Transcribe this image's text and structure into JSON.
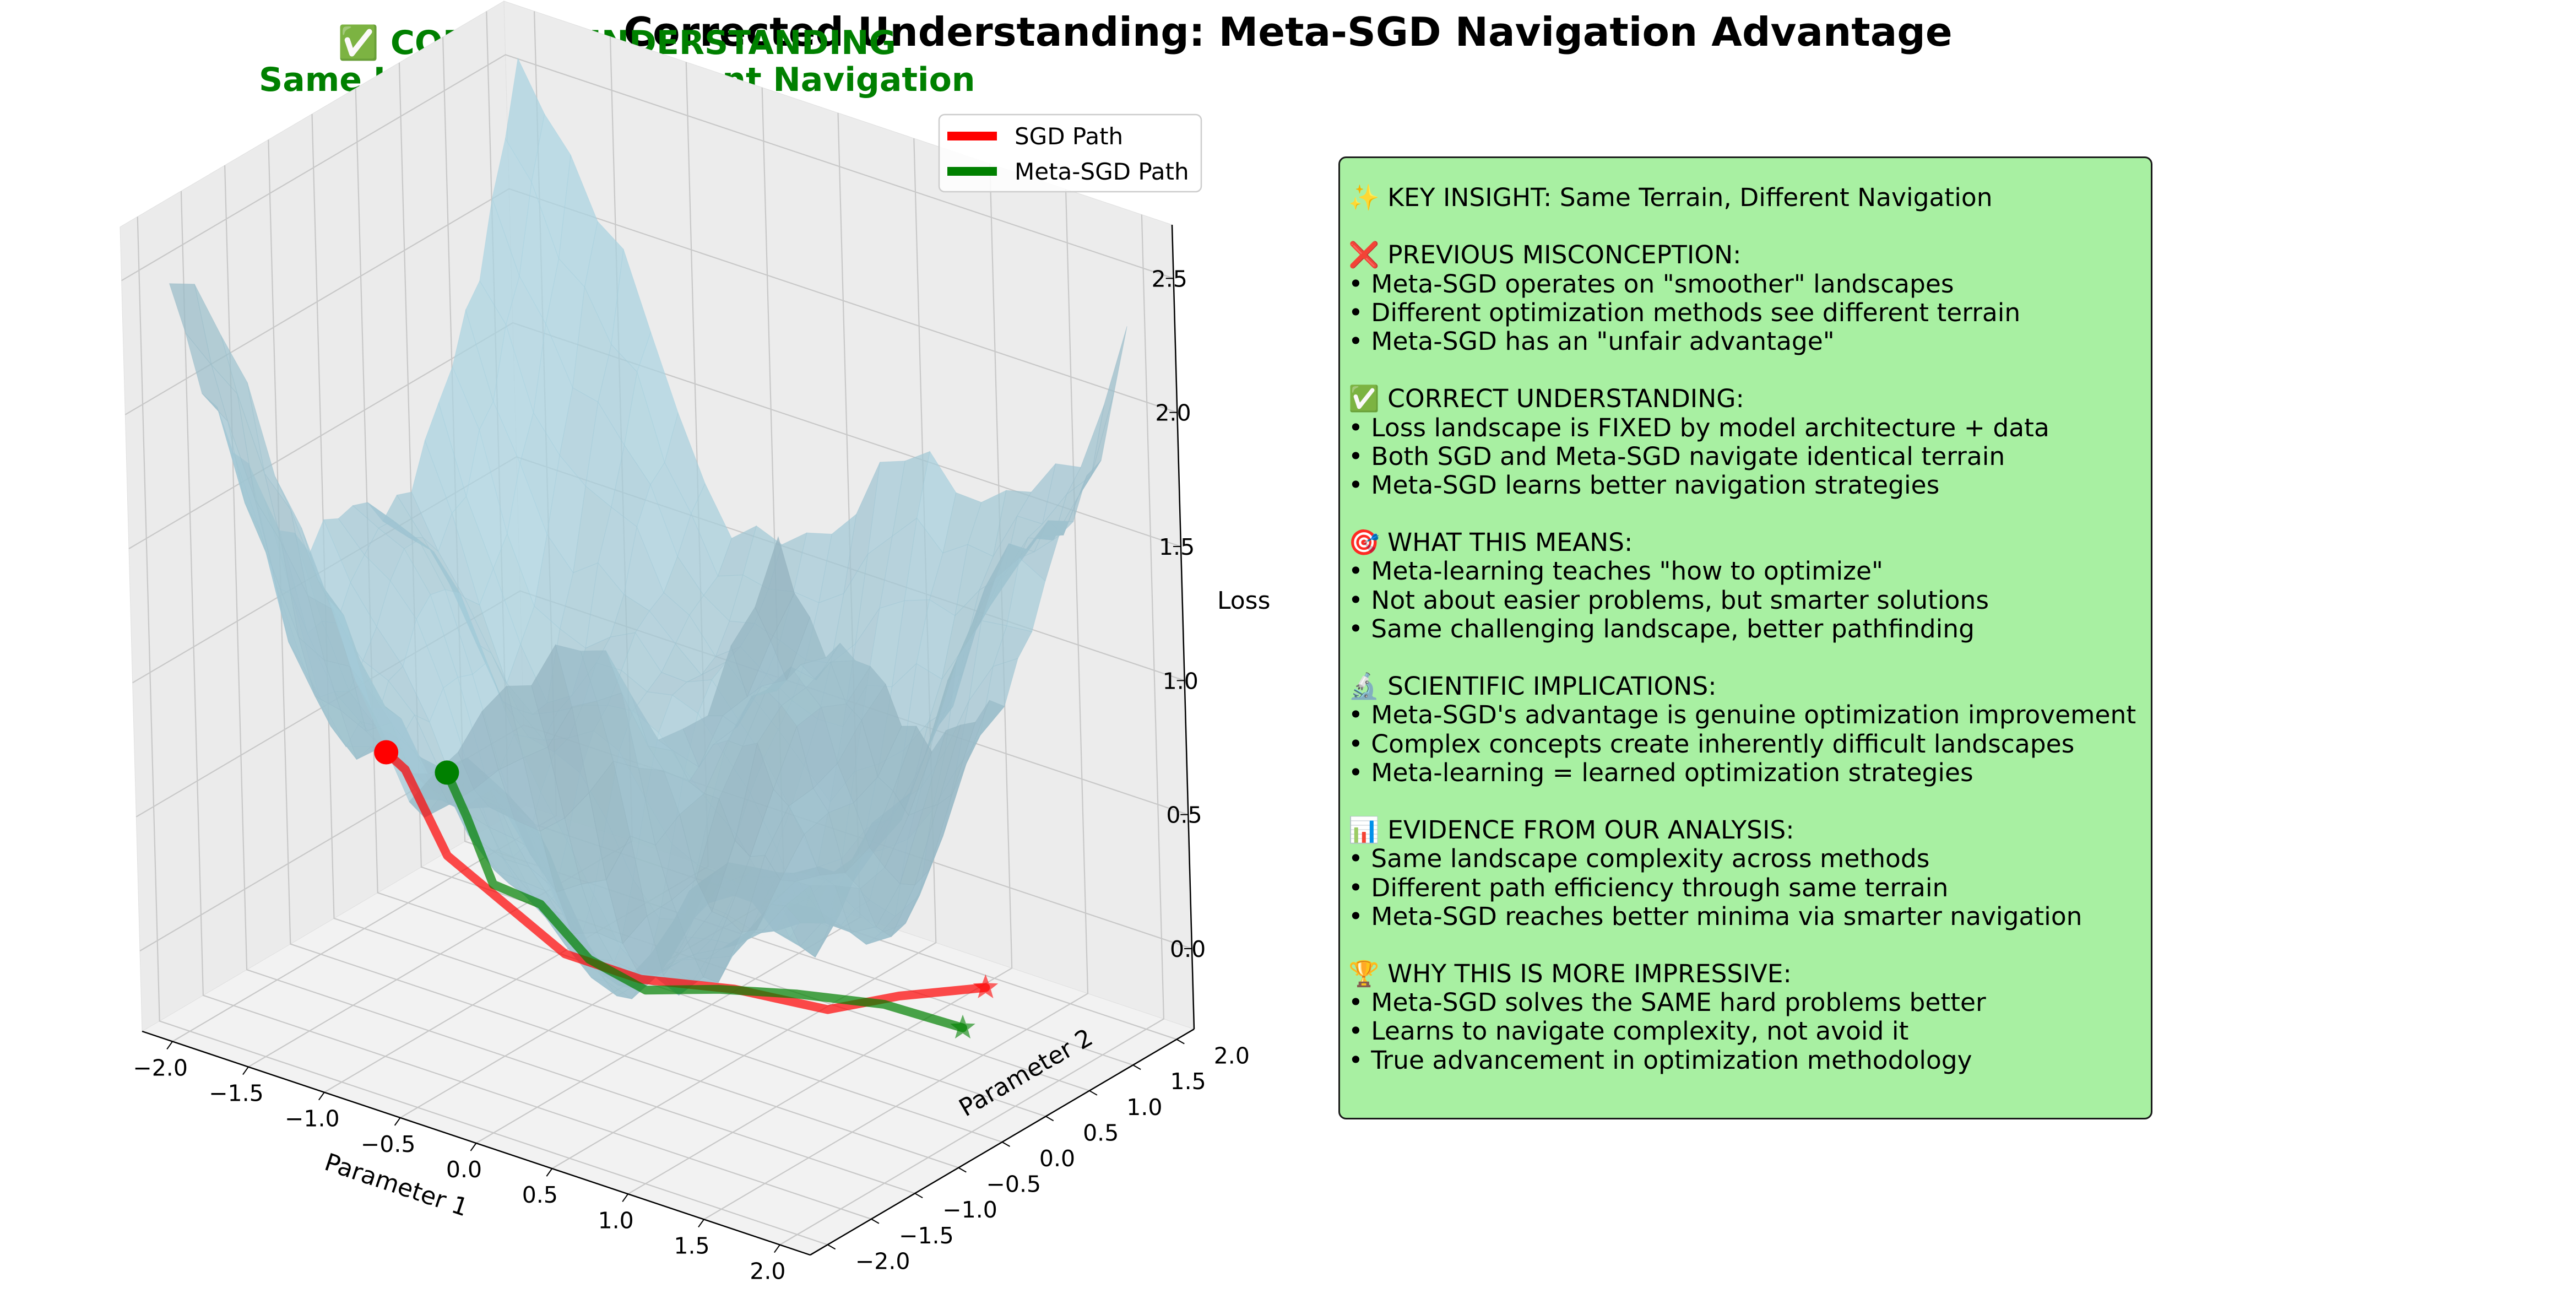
{
  "figure": {
    "title": "Corrected Understanding: Meta-SGD Navigation Advantage"
  },
  "chart_data": {
    "type": "3d-surface-with-paths",
    "title": "✅ CORRECT UNDERSTANDING",
    "subtitle": "Same Landscape, Different Navigation",
    "xlabel": "Parameter 1",
    "ylabel": "Parameter 2",
    "zlabel": "Loss",
    "xlim": [
      -2.2,
      2.2
    ],
    "ylim": [
      -2.2,
      2.2
    ],
    "zlim": [
      -0.3,
      2.7
    ],
    "x_ticks": [
      "−2.0",
      "−1.5",
      "−1.0",
      "−0.5",
      "0.0",
      "0.5",
      "1.0",
      "1.5",
      "2.0"
    ],
    "y_ticks": [
      "−2.0",
      "−1.5",
      "−1.0",
      "−0.5",
      "0.0",
      "0.5",
      "1.0",
      "1.5",
      "2.0"
    ],
    "z_ticks": [
      "0.0",
      "0.5",
      "1.0",
      "1.5",
      "2.0",
      "2.5"
    ],
    "legend_position": "top-right",
    "grid": true,
    "surface": {
      "color": "#add8e6",
      "description_model": "loss = 0.3*x^2 + 0.3*y^2 + 0.3*sin(3x)*cos(3y) + noise"
    },
    "series": [
      {
        "name": "SGD Path",
        "color": "#ff0000",
        "x": [
          -2.0,
          -1.7,
          -1.2,
          -0.7,
          -0.2,
          0.3,
          0.8,
          1.3,
          1.6,
          2.0
        ],
        "y": [
          0.3,
          0.0,
          -0.4,
          -0.6,
          -0.8,
          -0.8,
          -0.6,
          -0.4,
          -0.1,
          0.2
        ],
        "z": [
          0.3,
          0.35,
          0.2,
          0.15,
          0.1,
          0.1,
          0.12,
          0.1,
          0.15,
          0.2
        ]
      },
      {
        "name": "Meta-SGD Path",
        "color": "#008000",
        "x": [
          -1.6,
          -1.3,
          -0.9,
          -0.5,
          -0.1,
          0.3,
          0.7,
          1.1,
          1.5,
          1.9
        ],
        "y": [
          0.3,
          0.0,
          -0.4,
          -0.55,
          -0.7,
          -0.75,
          -0.6,
          -0.4,
          -0.1,
          0.1
        ],
        "z": [
          0.3,
          0.25,
          0.15,
          0.18,
          0.08,
          0.05,
          0.1,
          0.12,
          0.1,
          0.05
        ]
      }
    ]
  },
  "panel": {
    "lines": [
      "✨ KEY INSIGHT: Same Terrain, Different Navigation",
      "",
      "❌ PREVIOUS MISCONCEPTION:",
      "• Meta-SGD operates on \"smoother\" landscapes",
      "• Different optimization methods see different terrain",
      "• Meta-SGD has an \"unfair advantage\"",
      "",
      "✅ CORRECT UNDERSTANDING:",
      "• Loss landscape is FIXED by model architecture + data",
      "• Both SGD and Meta-SGD navigate identical terrain",
      "• Meta-SGD learns better navigation strategies",
      "",
      "🎯 WHAT THIS MEANS:",
      "• Meta-learning teaches \"how to optimize\"",
      "• Not about easier problems, but smarter solutions",
      "• Same challenging landscape, better pathfinding",
      "",
      "🔬 SCIENTIFIC IMPLICATIONS:",
      "• Meta-SGD's advantage is genuine optimization improvement",
      "• Complex concepts create inherently difficult landscapes",
      "• Meta-learning = learned optimization strategies",
      "",
      "📊 EVIDENCE FROM OUR ANALYSIS:",
      "• Same landscape complexity across methods",
      "• Different path efficiency through same terrain",
      "• Meta-SGD reaches better minima via smarter navigation",
      "",
      "🏆 WHY THIS IS MORE IMPRESSIVE:",
      "• Meta-SGD solves the SAME hard problems better",
      "• Learns to navigate complexity, not avoid it",
      "• True advancement in optimization methodology"
    ]
  }
}
